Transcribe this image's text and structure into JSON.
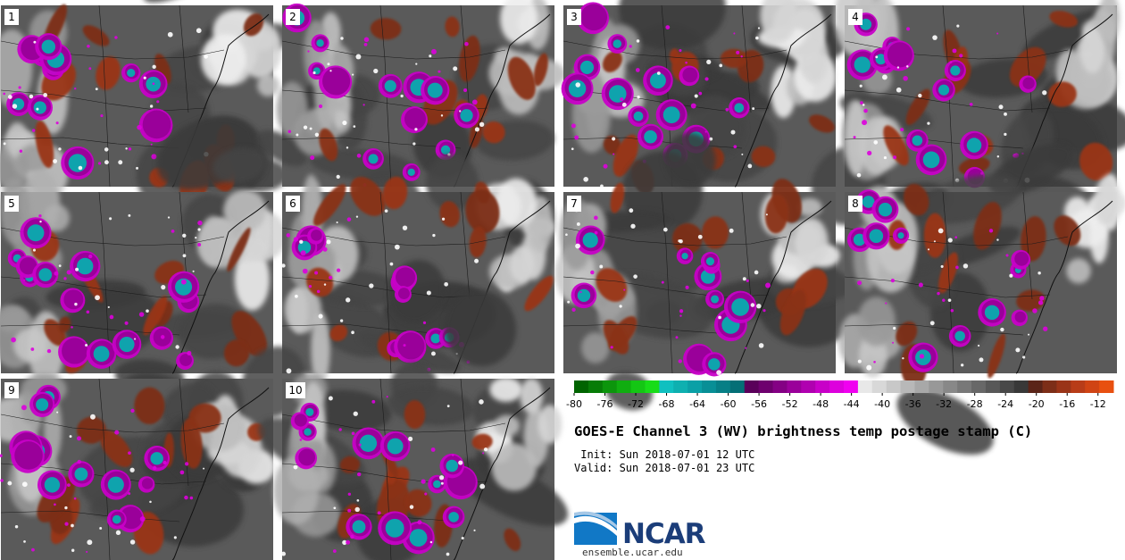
{
  "panels": [
    {
      "label": "1"
    },
    {
      "label": "2"
    },
    {
      "label": "3"
    },
    {
      "label": "4"
    },
    {
      "label": "5"
    },
    {
      "label": "6"
    },
    {
      "label": "7"
    },
    {
      "label": "8"
    },
    {
      "label": "9"
    },
    {
      "label": "10"
    }
  ],
  "colorbar": {
    "ticks": [
      "-80",
      "-76",
      "-72",
      "-68",
      "-64",
      "-60",
      "-56",
      "-52",
      "-48",
      "-44",
      "-40",
      "-36",
      "-32",
      "-28",
      "-24",
      "-20",
      "-16",
      "-12"
    ],
    "range": [
      -80,
      -10
    ],
    "bin_width": 2,
    "colors": [
      "#006400",
      "#077c07",
      "#0c950c",
      "#10ad10",
      "#14c614",
      "#18dc18",
      "#10c0c0",
      "#0eb0b0",
      "#0aa0a6",
      "#088f96",
      "#067f86",
      "#046f76",
      "#5a005a",
      "#6e006e",
      "#840084",
      "#9a009a",
      "#b000b0",
      "#c800c8",
      "#dd00dd",
      "#f000f0",
      "#e8e8e8",
      "#d8d8d8",
      "#c8c8c8",
      "#b8b8b8",
      "#a8a8a8",
      "#989898",
      "#888888",
      "#787878",
      "#686868",
      "#585858",
      "#484848",
      "#383838",
      "#5a2418",
      "#7d2e18",
      "#9a3418",
      "#b83c18",
      "#d04414",
      "#e85010"
    ]
  },
  "title": "GOES-E Channel 3 (WV) brightness temp postage stamp (C)",
  "init_line": " Init: Sun 2018-07-01 12 UTC",
  "valid_line": "Valid: Sun 2018-07-01 23 UTC",
  "logo": {
    "text": "NCAR",
    "website": "ensemble.ucar.edu"
  }
}
